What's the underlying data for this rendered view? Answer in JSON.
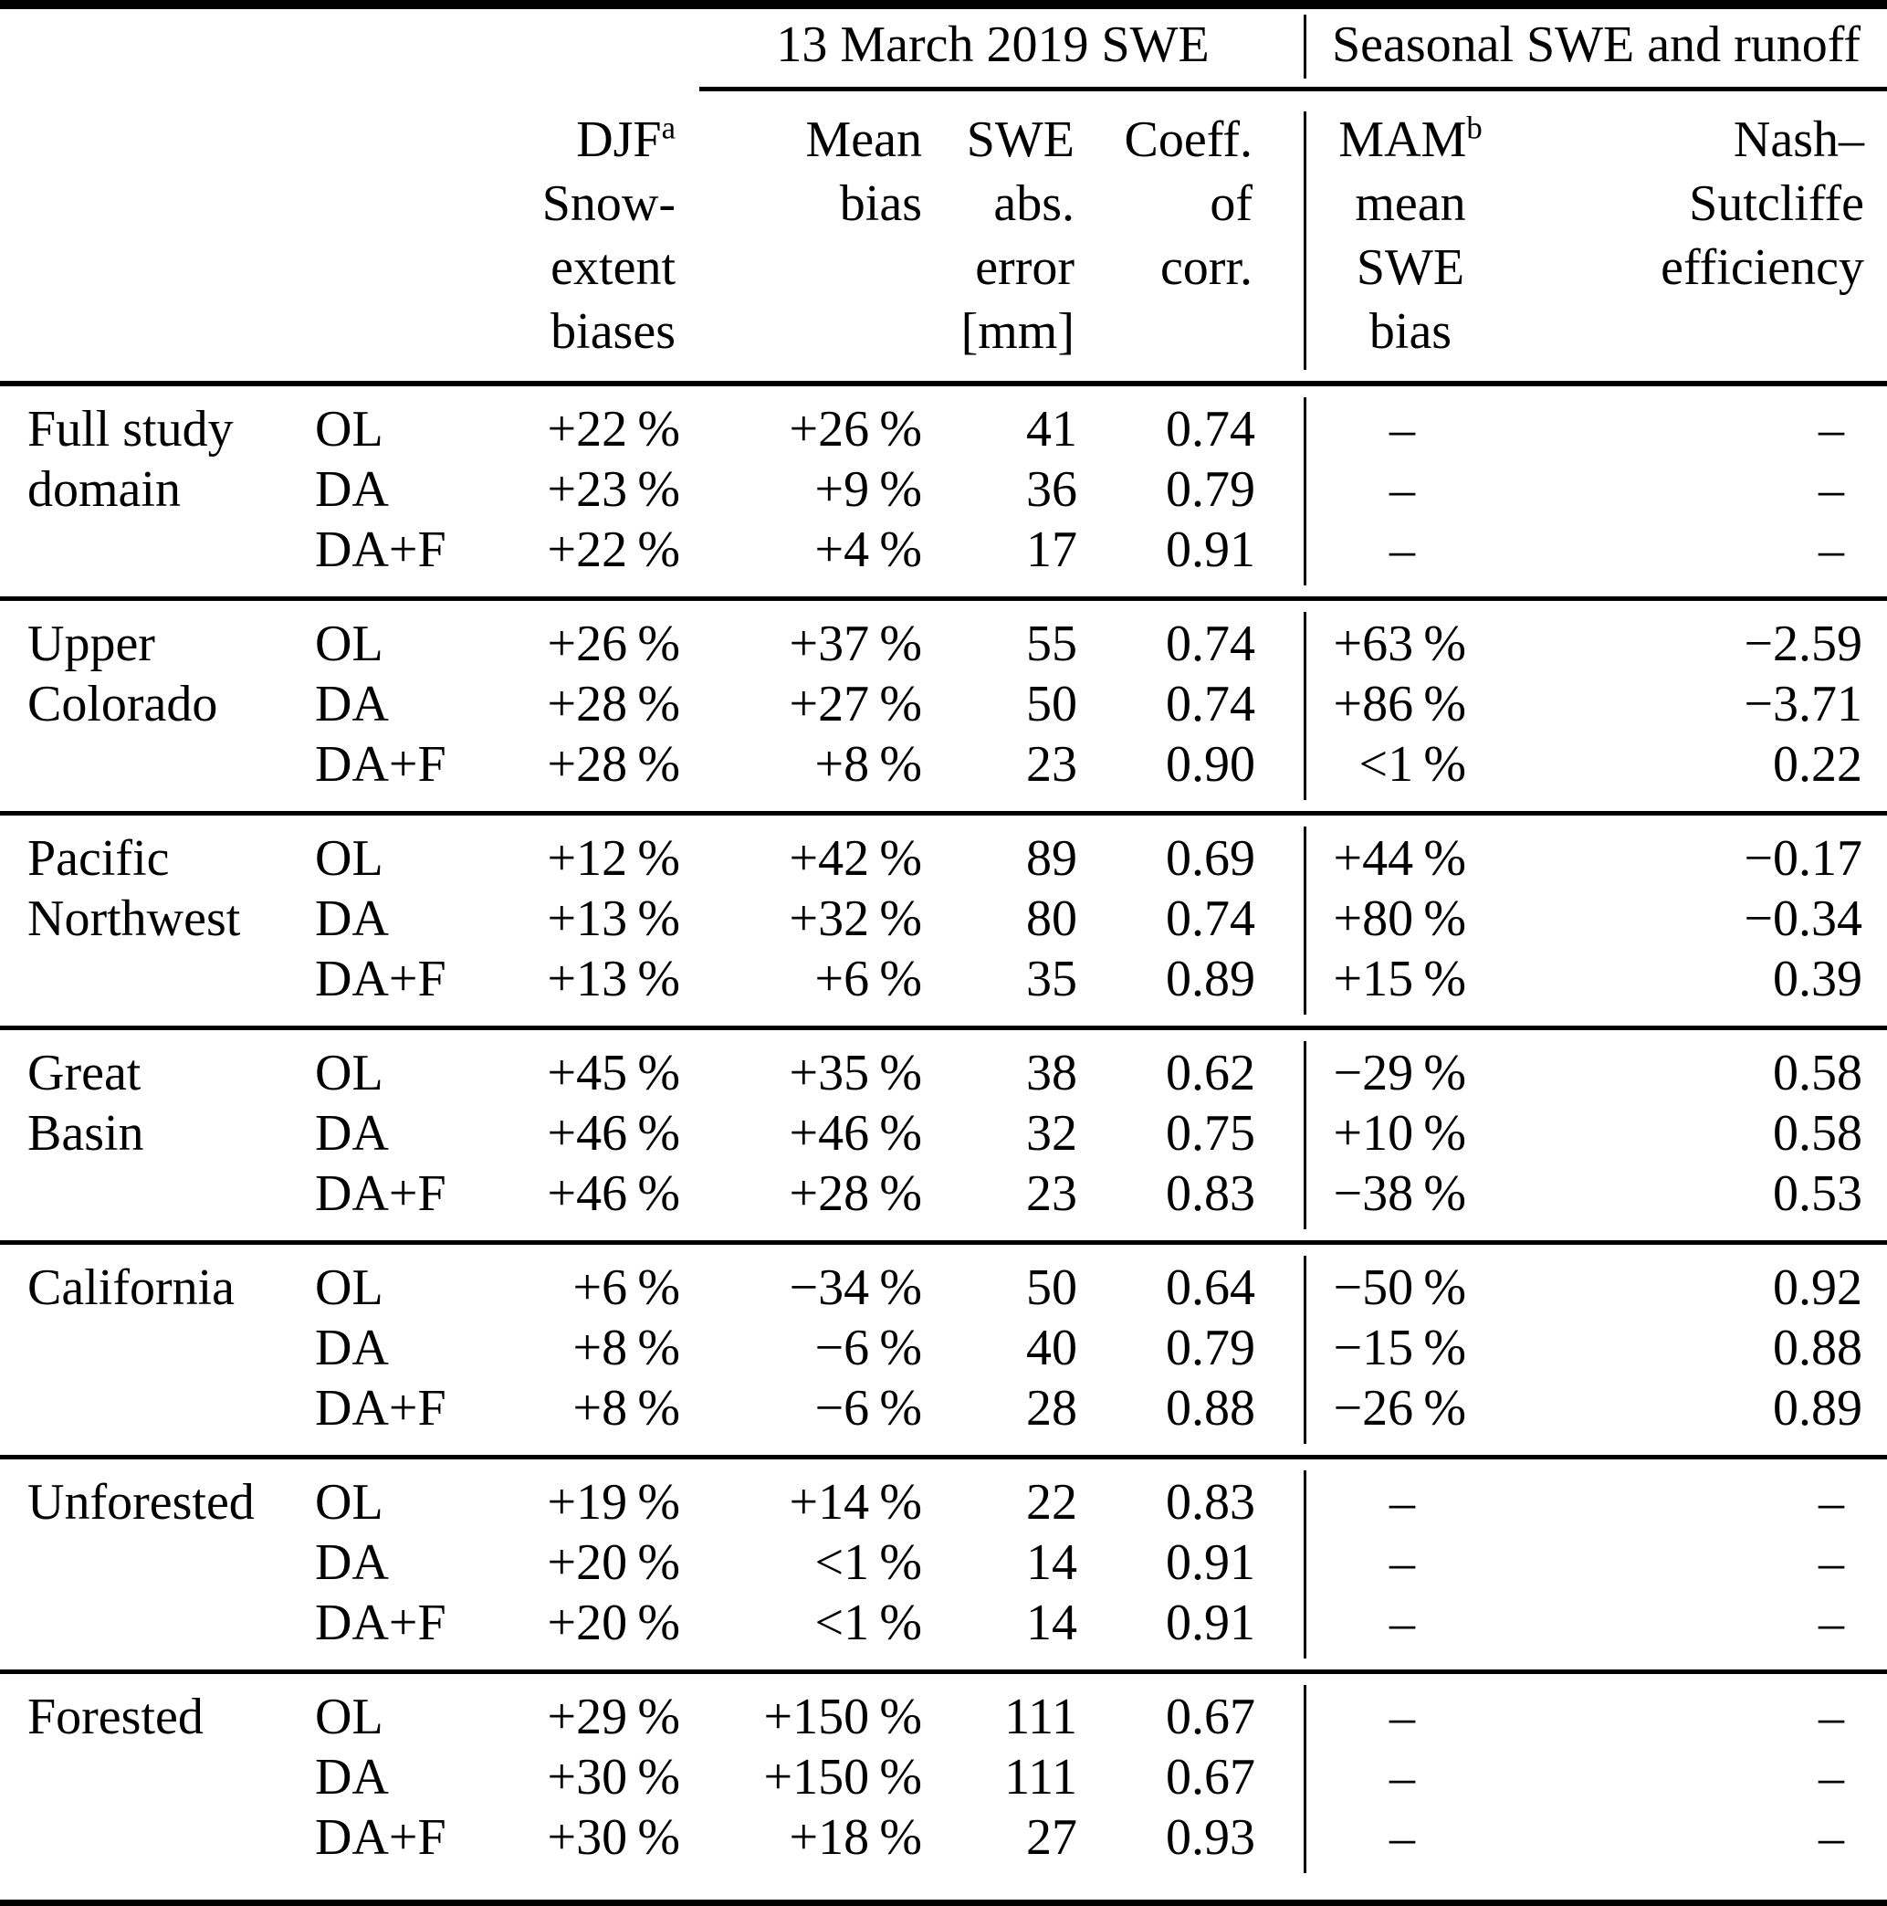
{
  "table": {
    "group_headers": [
      {
        "label": "13 March 2019 SWE"
      },
      {
        "label": "Seasonal SWE and runoff"
      }
    ],
    "column_headers": {
      "djf": {
        "lines": [
          "DJF",
          "Snow-",
          "extent",
          "biases"
        ],
        "superscript": "a"
      },
      "mean_bias": {
        "lines": [
          "Mean",
          "bias"
        ]
      },
      "swe_abs_error": {
        "lines": [
          "SWE",
          "abs.",
          "error",
          "[mm]"
        ]
      },
      "coeff_corr": {
        "lines": [
          "Coeff.",
          "of",
          "corr."
        ]
      },
      "mam": {
        "lines": [
          "MAM",
          "mean",
          "SWE",
          "bias"
        ],
        "superscript": "b"
      },
      "nash": {
        "lines": [
          "Nash–",
          "Sutcliffe",
          "efficiency"
        ]
      }
    },
    "missing_value_symbol": "–",
    "sections": [
      {
        "region_lines": [
          "Full study",
          "domain"
        ],
        "rows": [
          {
            "run": "OL",
            "djf": "+22 %",
            "mean_bias": "+26 %",
            "swe_abs_error": "41",
            "coeff_corr": "0.74",
            "mam": "–",
            "nash": "–"
          },
          {
            "run": "DA",
            "djf": "+23 %",
            "mean_bias": "+9 %",
            "swe_abs_error": "36",
            "coeff_corr": "0.79",
            "mam": "–",
            "nash": "–"
          },
          {
            "run": "DA+F",
            "djf": "+22 %",
            "mean_bias": "+4 %",
            "swe_abs_error": "17",
            "coeff_corr": "0.91",
            "mam": "–",
            "nash": "–"
          }
        ]
      },
      {
        "region_lines": [
          "Upper",
          "Colorado"
        ],
        "rows": [
          {
            "run": "OL",
            "djf": "+26 %",
            "mean_bias": "+37 %",
            "swe_abs_error": "55",
            "coeff_corr": "0.74",
            "mam": "+63 %",
            "nash": "−2.59"
          },
          {
            "run": "DA",
            "djf": "+28 %",
            "mean_bias": "+27 %",
            "swe_abs_error": "50",
            "coeff_corr": "0.74",
            "mam": "+86 %",
            "nash": "−3.71"
          },
          {
            "run": "DA+F",
            "djf": "+28 %",
            "mean_bias": "+8 %",
            "swe_abs_error": "23",
            "coeff_corr": "0.90",
            "mam": "<1 %",
            "nash": "0.22"
          }
        ]
      },
      {
        "region_lines": [
          "Pacific",
          "Northwest"
        ],
        "rows": [
          {
            "run": "OL",
            "djf": "+12 %",
            "mean_bias": "+42 %",
            "swe_abs_error": "89",
            "coeff_corr": "0.69",
            "mam": "+44 %",
            "nash": "−0.17"
          },
          {
            "run": "DA",
            "djf": "+13 %",
            "mean_bias": "+32 %",
            "swe_abs_error": "80",
            "coeff_corr": "0.74",
            "mam": "+80 %",
            "nash": "−0.34"
          },
          {
            "run": "DA+F",
            "djf": "+13 %",
            "mean_bias": "+6 %",
            "swe_abs_error": "35",
            "coeff_corr": "0.89",
            "mam": "+15 %",
            "nash": "0.39"
          }
        ]
      },
      {
        "region_lines": [
          "Great",
          "Basin"
        ],
        "rows": [
          {
            "run": "OL",
            "djf": "+45 %",
            "mean_bias": "+35 %",
            "swe_abs_error": "38",
            "coeff_corr": "0.62",
            "mam": "−29 %",
            "nash": "0.58"
          },
          {
            "run": "DA",
            "djf": "+46 %",
            "mean_bias": "+46 %",
            "swe_abs_error": "32",
            "coeff_corr": "0.75",
            "mam": "+10 %",
            "nash": "0.58"
          },
          {
            "run": "DA+F",
            "djf": "+46 %",
            "mean_bias": "+28 %",
            "swe_abs_error": "23",
            "coeff_corr": "0.83",
            "mam": "−38 %",
            "nash": "0.53"
          }
        ]
      },
      {
        "region_lines": [
          "California"
        ],
        "rows": [
          {
            "run": "OL",
            "djf": "+6 %",
            "mean_bias": "−34 %",
            "swe_abs_error": "50",
            "coeff_corr": "0.64",
            "mam": "−50 %",
            "nash": "0.92"
          },
          {
            "run": "DA",
            "djf": "+8 %",
            "mean_bias": "−6 %",
            "swe_abs_error": "40",
            "coeff_corr": "0.79",
            "mam": "−15 %",
            "nash": "0.88"
          },
          {
            "run": "DA+F",
            "djf": "+8 %",
            "mean_bias": "−6 %",
            "swe_abs_error": "28",
            "coeff_corr": "0.88",
            "mam": "−26 %",
            "nash": "0.89"
          }
        ]
      },
      {
        "region_lines": [
          "Unforested"
        ],
        "rows": [
          {
            "run": "OL",
            "djf": "+19 %",
            "mean_bias": "+14 %",
            "swe_abs_error": "22",
            "coeff_corr": "0.83",
            "mam": "–",
            "nash": "–"
          },
          {
            "run": "DA",
            "djf": "+20 %",
            "mean_bias": "<1 %",
            "swe_abs_error": "14",
            "coeff_corr": "0.91",
            "mam": "–",
            "nash": "–"
          },
          {
            "run": "DA+F",
            "djf": "+20 %",
            "mean_bias": "<1 %",
            "swe_abs_error": "14",
            "coeff_corr": "0.91",
            "mam": "–",
            "nash": "–"
          }
        ]
      },
      {
        "region_lines": [
          "Forested"
        ],
        "rows": [
          {
            "run": "OL",
            "djf": "+29 %",
            "mean_bias": "+150 %",
            "swe_abs_error": "111",
            "coeff_corr": "0.67",
            "mam": "–",
            "nash": "–"
          },
          {
            "run": "DA",
            "djf": "+30 %",
            "mean_bias": "+150 %",
            "swe_abs_error": "111",
            "coeff_corr": "0.67",
            "mam": "–",
            "nash": "–"
          },
          {
            "run": "DA+F",
            "djf": "+30 %",
            "mean_bias": "+18 %",
            "swe_abs_error": "27",
            "coeff_corr": "0.93",
            "mam": "–",
            "nash": "–"
          }
        ]
      }
    ]
  }
}
